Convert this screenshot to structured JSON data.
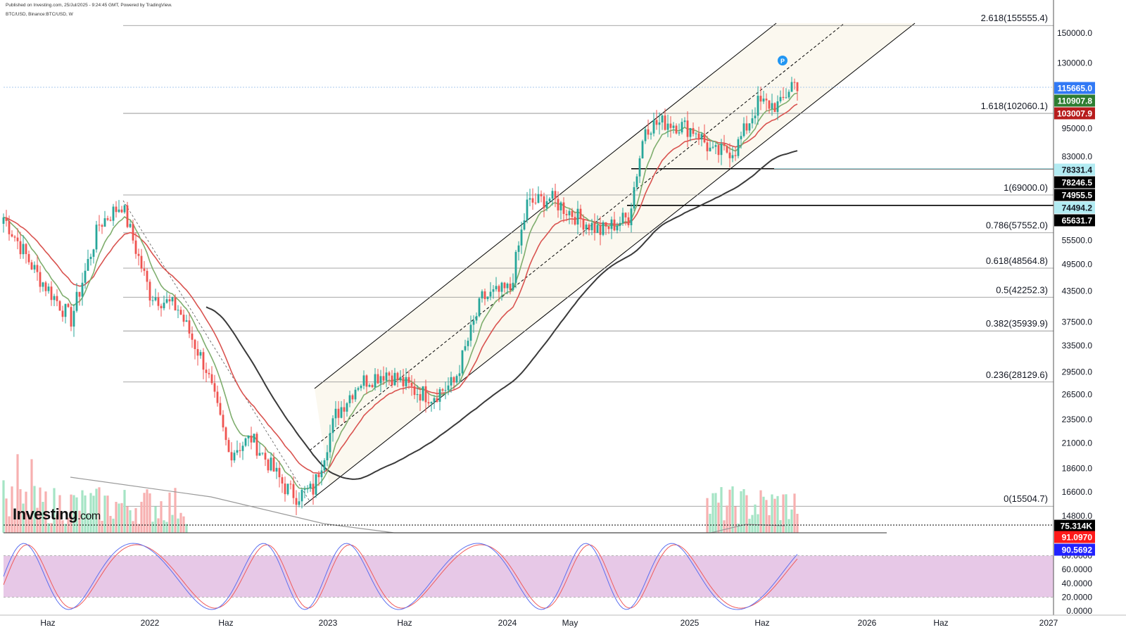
{
  "header": {
    "published": "Published on Investing.com, 25/Jul/2025 - 9:24:45 GMT, Powered by TradingView.",
    "symbol": "BTC/USD, Binance:BTC/USD, W"
  },
  "logo": {
    "text": "Investing",
    "suffix": ".com",
    "accent": "#f7a21b"
  },
  "chart_data": [
    {
      "type": "candlestick",
      "title": "BTC/USD, Binance:BTC/USD, W",
      "scale": "log",
      "ylim": [
        14000,
        165000
      ],
      "x_tick_labels": [
        "Haz",
        "2022",
        "Haz",
        "2023",
        "Haz",
        "2024",
        "May",
        "2025",
        "Haz",
        "2026",
        "Haz",
        "2027"
      ],
      "y_tick_labels": [
        "150000.0",
        "130000.0",
        "95000.0",
        "83000.0",
        "55500.0",
        "49500.0",
        "43500.0",
        "37500.0",
        "33500.0",
        "29500.0",
        "26500.0",
        "23500.0",
        "21000.0",
        "18600.0",
        "16600.0",
        "14800.0"
      ],
      "y_tick_values": [
        150000,
        130000,
        95000,
        83000,
        55500,
        49500,
        43500,
        37500,
        33500,
        29500,
        26500,
        23500,
        21000,
        18600,
        16600,
        14800
      ],
      "fibonacci": [
        {
          "label": "2.618(155555.4)",
          "value": 155555.4
        },
        {
          "label": "1.618(102060.1)",
          "value": 102060.1
        },
        {
          "label": "1(69000.0)",
          "value": 69000.0
        },
        {
          "label": "0.786(57552.0)",
          "value": 57552.0
        },
        {
          "label": "0.618(48564.8)",
          "value": 48564.8
        },
        {
          "label": "0.5(42252.3)",
          "value": 42252.3
        },
        {
          "label": "0.382(35939.9)",
          "value": 35939.9
        },
        {
          "label": "0.236(28129.6)",
          "value": 28129.6
        },
        {
          "label": "0(15504.7)",
          "value": 15504.7
        }
      ],
      "price_tags": [
        {
          "label": "115665.0",
          "value": 115665.0,
          "color": "#3179f5"
        },
        {
          "label": "110907.8",
          "value": 110907.8,
          "color": "#2e7d32"
        },
        {
          "label": "103007.9",
          "value": 103007.9,
          "color": "#b71c1c"
        },
        {
          "label": "78331.4",
          "value": 78331.4,
          "color": "#b2ebf2"
        },
        {
          "label": "78246.5",
          "value": 78246.5,
          "color": "#000000"
        },
        {
          "label": "74955.5",
          "value": 74955.5,
          "color": "#000000"
        },
        {
          "label": "74494.2",
          "value": 74494.2,
          "color": "#b2ebf2"
        },
        {
          "label": "65631.7",
          "value": 65631.7,
          "color": "#000000"
        }
      ],
      "series": [
        {
          "name": "Price",
          "keypoints": [
            [
              0,
              62000
            ],
            [
              12,
              47000
            ],
            [
              24,
              38000
            ],
            [
              34,
              60000
            ],
            [
              42,
              66000
            ],
            [
              52,
              43000
            ],
            [
              62,
              40000
            ],
            [
              72,
              30000
            ],
            [
              80,
              20000
            ],
            [
              88,
              21500
            ],
            [
              100,
              17000
            ],
            [
              104,
              16300
            ],
            [
              110,
              16800
            ],
            [
              118,
              24000
            ],
            [
              126,
              28000
            ],
            [
              136,
              29500
            ],
            [
              146,
              27000
            ],
            [
              152,
              26300
            ],
            [
              160,
              28000
            ],
            [
              170,
              42000
            ],
            [
              180,
              44000
            ],
            [
              186,
              66000
            ],
            [
              194,
              68000
            ],
            [
              204,
              62000
            ],
            [
              212,
              58000
            ],
            [
              222,
              62000
            ],
            [
              228,
              96000
            ],
            [
              236,
              98000
            ],
            [
              246,
              94000
            ],
            [
              252,
              84000
            ],
            [
              260,
              86000
            ],
            [
              268,
              107000
            ],
            [
              276,
              106000
            ],
            [
              280,
              118000
            ],
            [
              282,
              117500
            ]
          ],
          "up_color": "#26a69a",
          "down_color": "#ef5350"
        },
        {
          "name": "EMA fast",
          "color": "#7fae6e"
        },
        {
          "name": "EMA slow",
          "color": "#d9534f"
        },
        {
          "name": "MA long",
          "color": "#3a3a3a"
        }
      ],
      "channel": {
        "fill": "#fbf8ef",
        "line_color": "#000000"
      }
    },
    {
      "type": "bar",
      "name": "Volume",
      "value_label": "75.314K",
      "up_color": "#a5e4c5",
      "down_color": "#f7b0b0"
    },
    {
      "type": "line",
      "name": "Stochastic RSI",
      "ylim": [
        0,
        100
      ],
      "y_tick_labels": [
        "80.0000",
        "60.0000",
        "40.0000",
        "20.0000",
        "0.0000"
      ],
      "band": [
        20,
        80
      ],
      "band_color": "#e7c8e7",
      "tags": [
        {
          "label": "91.0970",
          "value": 91.097,
          "color": "#ff1a1a"
        },
        {
          "label": "90.5692",
          "value": 90.5692,
          "color": "#2222ff"
        }
      ],
      "series": [
        {
          "name": "K",
          "color": "#5b6ff0"
        },
        {
          "name": "D",
          "color": "#f05b5b"
        }
      ]
    }
  ]
}
